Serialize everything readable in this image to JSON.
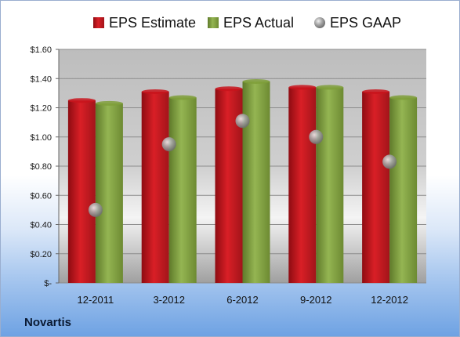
{
  "chart_data": {
    "type": "bar",
    "categories": [
      "12-2011",
      "3-2012",
      "6-2012",
      "9-2012",
      "12-2012"
    ],
    "series": [
      {
        "name": "EPS Estimate",
        "kind": "bar",
        "color": "#c8141c",
        "values": [
          1.25,
          1.31,
          1.33,
          1.34,
          1.31
        ]
      },
      {
        "name": "EPS Actual",
        "kind": "bar",
        "color": "#7f9f3a",
        "values": [
          1.23,
          1.27,
          1.38,
          1.34,
          1.27
        ]
      },
      {
        "name": "EPS GAAP",
        "kind": "scatter",
        "color": "#8e8e8e",
        "values": [
          0.5,
          0.95,
          1.11,
          1.0,
          0.83
        ]
      }
    ],
    "ylim": [
      0,
      1.6
    ],
    "yticks": [
      0,
      0.2,
      0.4,
      0.6,
      0.8,
      1.0,
      1.2,
      1.4,
      1.6
    ],
    "ytick_labels": [
      "$-",
      "$0.20",
      "$0.40",
      "$0.60",
      "$0.80",
      "$1.00",
      "$1.20",
      "$1.40",
      "$1.60"
    ],
    "grid": true,
    "legend_position": "top"
  },
  "company_label": "Novartis"
}
